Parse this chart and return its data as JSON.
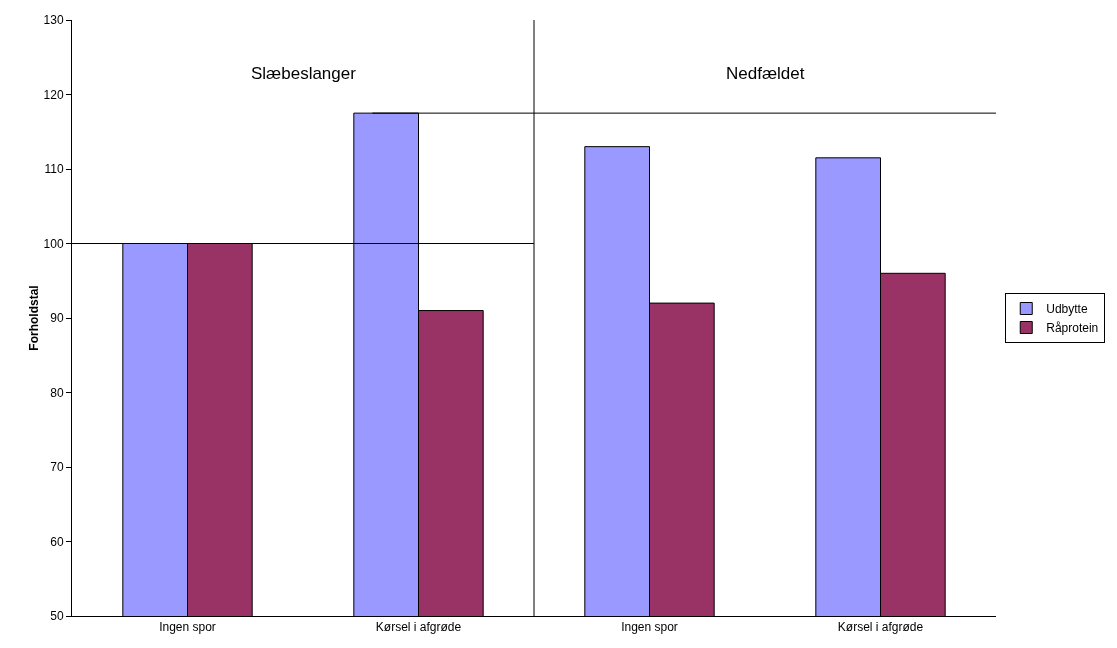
{
  "chart_data": {
    "type": "bar",
    "ylabel": "Forholdstal",
    "categories": [
      "Ingen spor",
      "Kørsel i afgrøde",
      "Ingen spor",
      "Kørsel i afgrøde"
    ],
    "series": [
      {
        "name": "Udbytte",
        "color": "#9999ff",
        "values": [
          100,
          117.5,
          113,
          111.5
        ]
      },
      {
        "name": "Råprotein",
        "color": "#993366",
        "values": [
          100,
          91,
          92,
          96
        ]
      }
    ],
    "ylim": [
      50,
      130
    ],
    "yticks": [
      50,
      60,
      70,
      80,
      90,
      100,
      110,
      120,
      130
    ],
    "grid": false,
    "legend": "right",
    "ref_lines": [
      {
        "axis": "y",
        "value": 100
      },
      {
        "axis": "y",
        "value": 117.5
      }
    ],
    "annotations": [
      "Slæbeslanger",
      "Nedfældet"
    ]
  }
}
